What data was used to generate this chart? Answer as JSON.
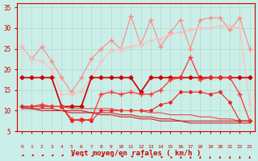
{
  "x": [
    0,
    1,
    2,
    3,
    4,
    5,
    6,
    7,
    8,
    9,
    10,
    11,
    12,
    13,
    14,
    15,
    16,
    17,
    18,
    19,
    20,
    21,
    22,
    23
  ],
  "series": [
    {
      "name": "rafales_max_line",
      "color": "#ff8888",
      "linewidth": 0.8,
      "marker": "+",
      "markersize": 4,
      "y": [
        25.5,
        22.5,
        25.5,
        22.0,
        18.0,
        14.5,
        18.0,
        22.5,
        25.0,
        27.0,
        25.0,
        33.0,
        26.0,
        32.0,
        25.5,
        29.0,
        32.0,
        25.0,
        32.0,
        32.5,
        32.5,
        29.5,
        32.5,
        25.0
      ]
    },
    {
      "name": "rafales_trend",
      "color": "#ffbbbb",
      "linewidth": 0.8,
      "marker": "+",
      "markersize": 4,
      "y": [
        25.5,
        22.5,
        22.0,
        20.0,
        14.0,
        14.0,
        14.5,
        18.0,
        22.0,
        24.5,
        25.0,
        25.5,
        26.0,
        27.0,
        27.5,
        28.5,
        29.0,
        29.5,
        30.0,
        30.0,
        30.5,
        30.5,
        30.0,
        11.5
      ]
    },
    {
      "name": "vent_max_flat",
      "color": "#cc0000",
      "linewidth": 1.2,
      "marker": "D",
      "markersize": 2.5,
      "y": [
        18.0,
        18.0,
        18.0,
        18.0,
        11.0,
        11.0,
        11.0,
        18.0,
        18.0,
        18.0,
        18.0,
        18.0,
        14.5,
        18.0,
        18.0,
        18.0,
        18.0,
        18.0,
        18.0,
        18.0,
        18.0,
        18.0,
        18.0,
        18.0
      ]
    },
    {
      "name": "vent_mean",
      "color": "#ff3333",
      "linewidth": 0.9,
      "marker": "+",
      "markersize": 4,
      "y": [
        11.0,
        11.0,
        11.5,
        11.0,
        11.0,
        8.0,
        7.5,
        8.0,
        14.0,
        14.5,
        14.0,
        14.5,
        14.0,
        14.0,
        15.0,
        17.5,
        18.0,
        23.0,
        17.5,
        18.0,
        18.0,
        18.0,
        14.0,
        7.5
      ]
    },
    {
      "name": "vent_low",
      "color": "#ee2222",
      "linewidth": 0.8,
      "marker": "D",
      "markersize": 2,
      "y": [
        11.0,
        11.0,
        11.0,
        11.0,
        11.0,
        7.5,
        8.0,
        7.5,
        10.0,
        10.0,
        10.0,
        10.0,
        10.0,
        10.0,
        11.5,
        12.0,
        14.5,
        14.5,
        14.5,
        14.0,
        14.5,
        12.0,
        7.5,
        7.5
      ]
    },
    {
      "name": "vent_trendline1",
      "color": "#ee4444",
      "linewidth": 0.8,
      "marker": null,
      "markersize": 0,
      "y": [
        11.0,
        11.0,
        11.0,
        11.0,
        11.0,
        10.5,
        10.5,
        10.5,
        10.5,
        10.5,
        10.0,
        10.0,
        10.0,
        9.5,
        9.5,
        9.0,
        9.0,
        9.0,
        8.5,
        8.5,
        8.0,
        8.0,
        7.5,
        7.5
      ]
    },
    {
      "name": "vent_trendline2",
      "color": "#cc2222",
      "linewidth": 0.8,
      "marker": null,
      "markersize": 0,
      "y": [
        11.0,
        10.5,
        10.5,
        10.5,
        10.0,
        10.0,
        10.0,
        9.5,
        9.5,
        9.5,
        9.0,
        9.0,
        8.5,
        8.5,
        8.0,
        8.0,
        7.5,
        7.5,
        7.5,
        7.5,
        7.5,
        7.5,
        7.5,
        7.5
      ]
    },
    {
      "name": "vent_trendline3",
      "color": "#cc2222",
      "linewidth": 0.8,
      "marker": null,
      "markersize": 0,
      "y": [
        10.5,
        10.5,
        10.0,
        10.0,
        10.0,
        9.5,
        9.5,
        9.5,
        9.0,
        9.0,
        8.5,
        8.5,
        8.0,
        8.0,
        7.5,
        7.5,
        7.5,
        7.0,
        7.0,
        7.0,
        7.0,
        7.0,
        7.0,
        7.0
      ]
    }
  ],
  "xlabel": "Vent moyen/en rafales ( km/h )",
  "xlim": [
    -0.5,
    23.5
  ],
  "ylim": [
    5,
    36
  ],
  "yticks": [
    5,
    10,
    15,
    20,
    25,
    30,
    35
  ],
  "xticks": [
    0,
    1,
    2,
    3,
    4,
    5,
    6,
    7,
    8,
    9,
    10,
    11,
    12,
    13,
    14,
    15,
    16,
    17,
    18,
    19,
    20,
    21,
    22,
    23
  ],
  "xtick_labels": [
    "0",
    "1",
    "2",
    "3",
    "4",
    "5",
    "6",
    "7",
    "8",
    "9",
    "10",
    "11",
    "12",
    "13",
    "14",
    "15",
    "16",
    "17",
    "18",
    "19",
    "20",
    "21",
    "22",
    "23"
  ],
  "bg_color": "#cceee8",
  "grid_color": "#aaddcc",
  "tick_color": "#cc0000",
  "label_color": "#cc0000"
}
